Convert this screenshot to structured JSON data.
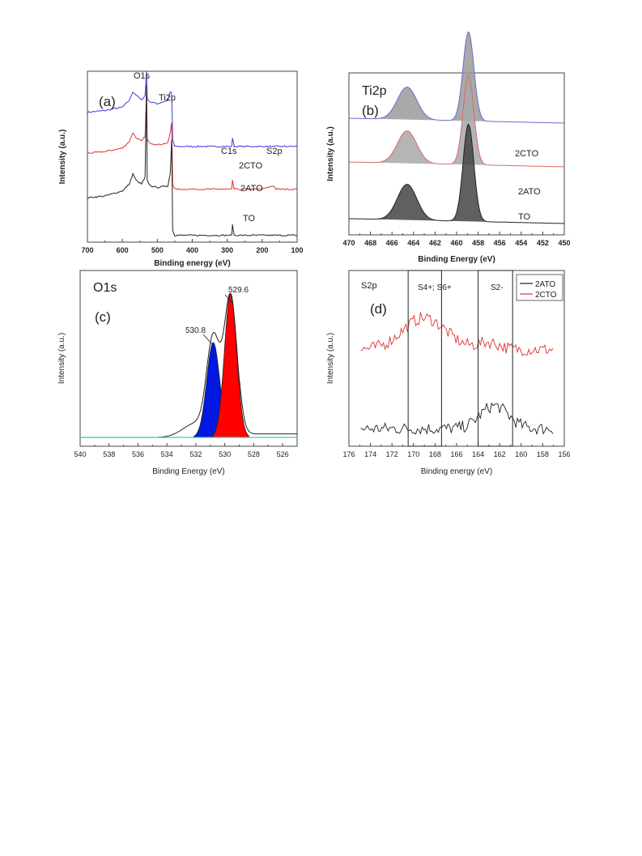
{
  "chart_data": [
    {
      "type": "line",
      "panel_label": "(a)",
      "title": "",
      "xlabel": "Binding energy (eV)",
      "ylabel": "Intensity (a.u.)",
      "xlim": [
        700,
        100
      ],
      "x_ticks": [
        "700",
        "600",
        "500",
        "400",
        "300",
        "200",
        "100"
      ],
      "peak_labels": [
        "O1s",
        "Ti2p",
        "C1s",
        "S2p"
      ],
      "series": [
        {
          "name": "2CTO",
          "color": "#3b3bdc",
          "x": [
            700,
            650,
            600,
            580,
            570,
            560,
            545,
            535,
            531,
            529,
            520,
            500,
            470,
            463,
            459,
            456,
            450,
            400,
            300,
            287,
            285,
            280,
            200,
            168,
            160,
            100
          ],
          "y": [
            0.76,
            0.77,
            0.79,
            0.83,
            0.88,
            0.86,
            0.83,
            0.86,
            1.0,
            0.84,
            0.82,
            0.81,
            0.83,
            0.88,
            0.87,
            0.6,
            0.56,
            0.56,
            0.56,
            0.56,
            0.61,
            0.56,
            0.56,
            0.56,
            0.56,
            0.56
          ]
        },
        {
          "name": "2ATO",
          "color": "#e03030",
          "x": [
            700,
            650,
            600,
            580,
            570,
            560,
            545,
            535,
            531,
            529,
            520,
            500,
            470,
            463,
            459,
            456,
            450,
            400,
            300,
            287,
            285,
            280,
            200,
            168,
            160,
            100
          ],
          "y": [
            0.52,
            0.53,
            0.55,
            0.59,
            0.64,
            0.61,
            0.59,
            0.62,
            0.88,
            0.6,
            0.58,
            0.57,
            0.58,
            0.64,
            0.7,
            0.34,
            0.31,
            0.31,
            0.31,
            0.31,
            0.36,
            0.31,
            0.31,
            0.33,
            0.31,
            0.31
          ]
        },
        {
          "name": "TO",
          "color": "#222222",
          "x": [
            700,
            650,
            600,
            580,
            570,
            560,
            545,
            535,
            531,
            529,
            520,
            500,
            470,
            463,
            459,
            456,
            450,
            400,
            300,
            287,
            285,
            280,
            200,
            168,
            160,
            100
          ],
          "y": [
            0.26,
            0.27,
            0.3,
            0.34,
            0.4,
            0.36,
            0.34,
            0.38,
            0.92,
            0.36,
            0.33,
            0.32,
            0.33,
            0.4,
            0.6,
            0.07,
            0.04,
            0.04,
            0.04,
            0.04,
            0.1,
            0.04,
            0.04,
            0.04,
            0.04,
            0.04
          ]
        }
      ],
      "series_labels": [
        "2CTO",
        "2ATO",
        "TO"
      ]
    },
    {
      "type": "area",
      "panel_label": "(b)",
      "title": "Ti2p",
      "xlabel": "Binding Energy (eV)",
      "ylabel": "Intensity (a.u.)",
      "xlim": [
        470,
        450
      ],
      "x_ticks": [
        "470",
        "468",
        "466",
        "464",
        "462",
        "460",
        "458",
        "456",
        "454",
        "452",
        "450"
      ],
      "series": [
        {
          "name": "2CTO",
          "fill": "#9a9a9a",
          "line": "#6a6ad0",
          "baseline": 0.72,
          "peaks": [
            {
              "center": 464.6,
              "height": 0.2,
              "width": 0.9
            },
            {
              "center": 458.9,
              "height": 0.55,
              "width": 0.5
            }
          ]
        },
        {
          "name": "2ATO",
          "fill": "#a8a8a8",
          "line": "#e06868",
          "baseline": 0.45,
          "peaks": [
            {
              "center": 464.6,
              "height": 0.2,
              "width": 0.9
            },
            {
              "center": 458.9,
              "height": 0.55,
              "width": 0.5
            }
          ]
        },
        {
          "name": "TO",
          "fill": "#444444",
          "line": "#222222",
          "baseline": 0.1,
          "peaks": [
            {
              "center": 464.6,
              "height": 0.22,
              "width": 0.9
            },
            {
              "center": 458.9,
              "height": 0.6,
              "width": 0.5
            }
          ]
        }
      ],
      "series_labels": [
        "2CTO",
        "2ATO",
        "TO"
      ]
    },
    {
      "type": "area",
      "panel_label": "(c)",
      "title": "O1s",
      "xlabel": "Binding Energy (eV)",
      "ylabel": "Intensity (a.u.)",
      "xlim": [
        540,
        525
      ],
      "x_ticks": [
        "540",
        "538",
        "536",
        "534",
        "532",
        "530",
        "528",
        "526"
      ],
      "baseline": 0.05,
      "components": [
        {
          "name": "530.8",
          "center": 530.8,
          "height": 0.54,
          "width": 0.45,
          "color": "#0018e0"
        },
        {
          "name": "529.6",
          "center": 529.6,
          "height": 0.82,
          "width": 0.42,
          "color": "#ff0000"
        }
      ],
      "peak_labels": [
        "530.8",
        "529.6"
      ],
      "baseline_color": "#40c8d0"
    },
    {
      "type": "line",
      "panel_label": "(d)",
      "title": "S2p",
      "xlabel": "Binding energy (eV)",
      "ylabel": "Intensity (a.u.)",
      "xlim": [
        176,
        156
      ],
      "x_ticks": [
        "176",
        "174",
        "172",
        "170",
        "168",
        "166",
        "164",
        "162",
        "160",
        "158",
        "156"
      ],
      "legend": {
        "position": "top-right",
        "entries": [
          "2ATO",
          "2CTO"
        ]
      },
      "series": [
        {
          "name": "2ATO",
          "color": "#222222",
          "base": 0.1,
          "bumps": [
            {
              "center": 162.5,
              "height": 0.13,
              "width": 1.3
            }
          ]
        },
        {
          "name": "2CTO",
          "color": "#e03030",
          "base": 0.55,
          "bumps": [
            {
              "center": 169.0,
              "height": 0.18,
              "width": 2.0
            },
            {
              "center": 163.0,
              "height": 0.04,
              "width": 1.0
            }
          ]
        }
      ],
      "regions": [
        {
          "label": "S4+; S6+",
          "x_from": 170.5,
          "x_to": 167.4
        },
        {
          "label": "S2-",
          "x_from": 164.0,
          "x_to": 160.8
        }
      ]
    }
  ]
}
